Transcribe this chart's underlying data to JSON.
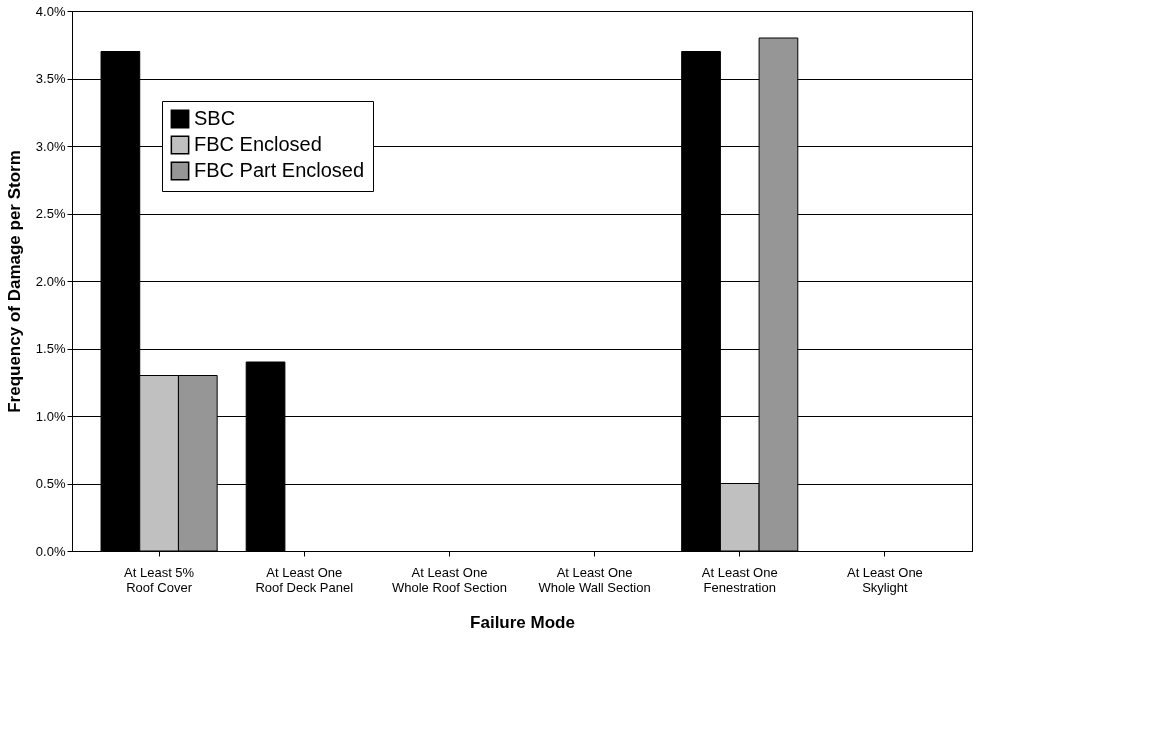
{
  "chart_data": {
    "type": "bar",
    "xlabel": "Failure Mode",
    "ylabel": "Frequency of Damage per Storm",
    "categories": [
      "At Least 5% Roof Cover",
      "At Least One Roof Deck Panel",
      "At Least One Whole Roof Section",
      "At Least One Whole Wall Section",
      "At Least One Fenestration",
      "At Least One Skylight"
    ],
    "series": [
      {
        "name": "SBC",
        "color": "#000000",
        "values": [
          3.7,
          1.4,
          0,
          0,
          3.7,
          0
        ]
      },
      {
        "name": "FBC Enclosed",
        "color": "#c0c0c0",
        "values": [
          1.3,
          0,
          0,
          0,
          0.5,
          0
        ]
      },
      {
        "name": "FBC Part Enclosed",
        "color": "#969696",
        "values": [
          1.3,
          0,
          0,
          0,
          3.8,
          0
        ]
      }
    ],
    "ylim": [
      0,
      4
    ],
    "yticks": [
      {
        "value": 0,
        "label": "0.0%"
      },
      {
        "value": 0.5,
        "label": "0.5%"
      },
      {
        "value": 1,
        "label": "1.0%"
      },
      {
        "value": 1.5,
        "label": "1.5%"
      },
      {
        "value": 2,
        "label": "2.0%"
      },
      {
        "value": 2.5,
        "label": "2.5%"
      },
      {
        "value": 3,
        "label": "3.0%"
      },
      {
        "value": 3.5,
        "label": "3.5%"
      },
      {
        "value": 4,
        "label": "4.0%"
      }
    ],
    "grid": "y",
    "legend": "top left"
  }
}
